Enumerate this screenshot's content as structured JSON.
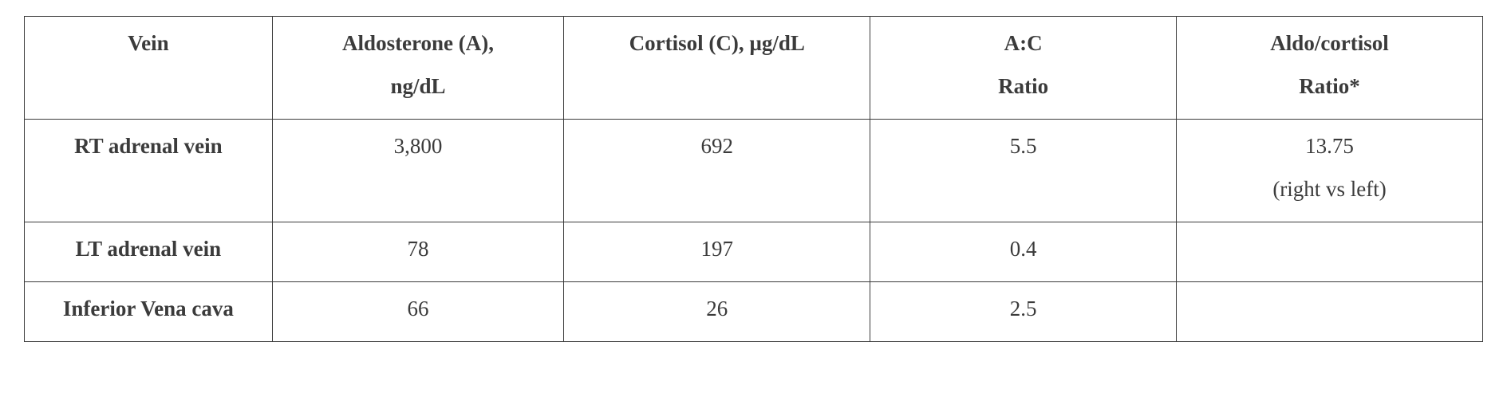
{
  "table": {
    "type": "table",
    "background_color": "#ffffff",
    "border_color": "#3b3b3b",
    "text_color": "#3b3b3b",
    "font_family": "Times New Roman",
    "header_font_weight": "bold",
    "body_font_weight_col1": "bold",
    "font_size_pt": 20,
    "columns": [
      {
        "line1": "Vein",
        "line2": "",
        "width_pct": 17
      },
      {
        "line1": "Aldosterone (A),",
        "line2": "ng/dL",
        "width_pct": 20
      },
      {
        "line1": "Cortisol (C), µg/dL",
        "line2": "",
        "width_pct": 21
      },
      {
        "line1": "A:C",
        "line2": "Ratio",
        "width_pct": 21
      },
      {
        "line1": "Aldo/cortisol",
        "line2": "Ratio*",
        "width_pct": 21
      }
    ],
    "rows": [
      {
        "vein": "RT adrenal vein",
        "aldosterone": "3,800",
        "cortisol": "692",
        "ac_ratio": "5.5",
        "aldo_cort_ratio": "13.75",
        "aldo_cort_note": "(right vs left)"
      },
      {
        "vein": "LT adrenal vein",
        "aldosterone": "78",
        "cortisol": "197",
        "ac_ratio": "0.4",
        "aldo_cort_ratio": "",
        "aldo_cort_note": ""
      },
      {
        "vein": "Inferior Vena cava",
        "aldosterone": "66",
        "cortisol": "26",
        "ac_ratio": "2.5",
        "aldo_cort_ratio": "",
        "aldo_cort_note": ""
      }
    ]
  }
}
